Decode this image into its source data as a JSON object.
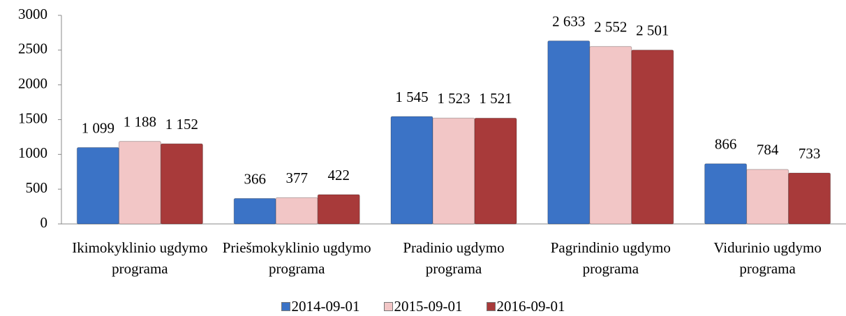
{
  "chart_data": {
    "type": "bar",
    "categories": [
      "Ikimokyklinio ugdymo programa",
      "Priešmokyklinio ugdymo programa",
      "Pradinio ugdymo programa",
      "Pagrindinio ugdymo programa",
      "Vidurinio ugdymo programa"
    ],
    "series": [
      {
        "name": "2014-09-01",
        "color": "#3b73c6",
        "values": [
          1099,
          366,
          1545,
          2633,
          866
        ],
        "value_labels": [
          "1 099",
          "366",
          "1 545",
          "2 633",
          "866"
        ]
      },
      {
        "name": "2015-09-01",
        "color": "#f2c6c6",
        "values": [
          1188,
          377,
          1523,
          2552,
          784
        ],
        "value_labels": [
          "1 188",
          "377",
          "1 523",
          "2 552",
          "784"
        ]
      },
      {
        "name": "2016-09-01",
        "color": "#a83a3a",
        "values": [
          1152,
          422,
          1521,
          2501,
          733
        ],
        "value_labels": [
          "1 152",
          "422",
          "1 521",
          "2 501",
          "733"
        ]
      }
    ],
    "ylim": [
      0,
      3000
    ],
    "yticks": [
      0,
      500,
      1000,
      1500,
      2000,
      2500,
      3000
    ],
    "grid": false,
    "legend": "bottom"
  }
}
